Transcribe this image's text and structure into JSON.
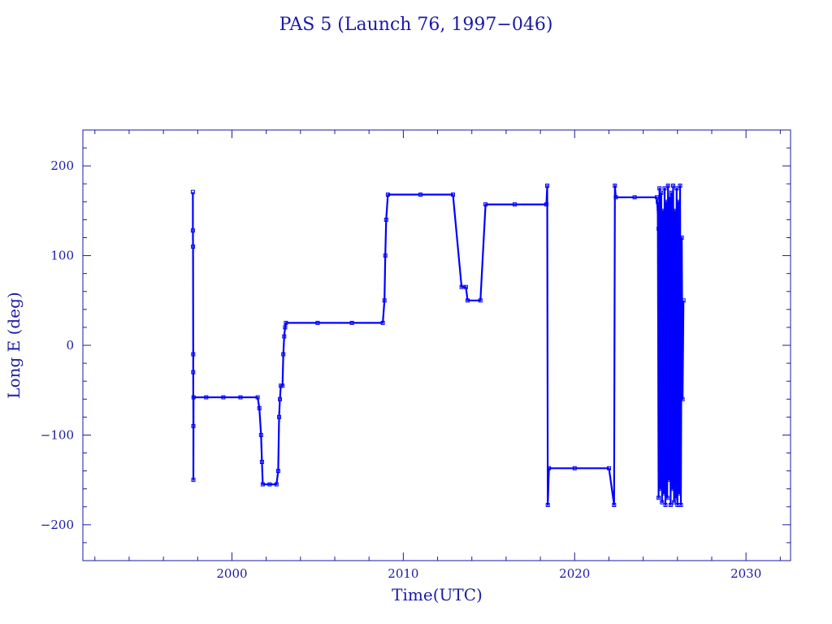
{
  "chart_data": {
    "type": "line",
    "title": "PAS 5 (Launch 76, 1997−046)",
    "xlabel": "Time(UTC)",
    "ylabel": "Long E (deg)",
    "xlim": [
      1991.3,
      2032.6
    ],
    "ylim": [
      -240,
      240
    ],
    "x_ticks": [
      {
        "value": 2000,
        "label": "2000"
      },
      {
        "value": 2010,
        "label": "2010"
      },
      {
        "value": 2020,
        "label": "2020"
      },
      {
        "value": 2030,
        "label": "2030"
      }
    ],
    "y_ticks": [
      {
        "value": 200,
        "label": "200"
      },
      {
        "value": 100,
        "label": "100"
      },
      {
        "value": 0,
        "label": "0"
      },
      {
        "value": -100,
        "label": "−100"
      },
      {
        "value": -200,
        "label": "−200"
      }
    ],
    "grid": false,
    "line_color": "#0000ff",
    "frame_color": "#1a1aa6",
    "series": [
      {
        "points": [
          [
            1997.72,
            171
          ],
          [
            1997.72,
            128
          ],
          [
            1997.73,
            110
          ],
          [
            1997.74,
            -10
          ],
          [
            1997.74,
            -30
          ],
          [
            1997.75,
            -90
          ],
          [
            1997.75,
            -150
          ],
          [
            1997.76,
            -58
          ],
          [
            1998.5,
            -58
          ],
          [
            1999.5,
            -58
          ],
          [
            2000.5,
            -58
          ],
          [
            2001.5,
            -58
          ],
          [
            2001.6,
            -70
          ],
          [
            2001.7,
            -100
          ],
          [
            2001.75,
            -130
          ],
          [
            2001.8,
            -155
          ],
          [
            2002.2,
            -155
          ],
          [
            2002.6,
            -155
          ],
          [
            2002.7,
            -140
          ],
          [
            2002.75,
            -80
          ],
          [
            2002.8,
            -60
          ],
          [
            2002.85,
            -45
          ],
          [
            2002.95,
            -45
          ],
          [
            2003.0,
            -10
          ],
          [
            2003.05,
            10
          ],
          [
            2003.1,
            20
          ],
          [
            2003.15,
            25
          ],
          [
            2005.0,
            25
          ],
          [
            2007.0,
            25
          ],
          [
            2008.8,
            25
          ],
          [
            2008.9,
            50
          ],
          [
            2008.95,
            100
          ],
          [
            2009.0,
            140
          ],
          [
            2009.1,
            168
          ],
          [
            2011.0,
            168
          ],
          [
            2012.9,
            168
          ],
          [
            2013.4,
            65
          ],
          [
            2013.65,
            65
          ],
          [
            2013.75,
            50
          ],
          [
            2014.5,
            50
          ],
          [
            2014.8,
            157
          ],
          [
            2016.5,
            157
          ],
          [
            2018.35,
            157
          ],
          [
            2018.4,
            178
          ],
          [
            2018.43,
            -178
          ],
          [
            2018.5,
            -137
          ],
          [
            2020.0,
            -137
          ],
          [
            2022.0,
            -137
          ],
          [
            2022.3,
            -178
          ],
          [
            2022.35,
            178
          ],
          [
            2022.4,
            165
          ],
          [
            2023.5,
            165
          ],
          [
            2024.8,
            165
          ],
          [
            2024.9,
            130
          ]
        ]
      },
      {
        "name": "",
        "points": [
          [
            2024.85,
            160
          ],
          [
            2024.9,
            -170
          ],
          [
            2024.95,
            175
          ],
          [
            2025.0,
            -160
          ],
          [
            2025.05,
            170
          ],
          [
            2025.1,
            -175
          ],
          [
            2025.15,
            150
          ],
          [
            2025.2,
            -165
          ],
          [
            2025.25,
            175
          ],
          [
            2025.3,
            -178
          ],
          [
            2025.35,
            160
          ],
          [
            2025.4,
            -170
          ],
          [
            2025.45,
            178
          ],
          [
            2025.5,
            -150
          ],
          [
            2025.55,
            165
          ],
          [
            2025.6,
            -178
          ],
          [
            2025.65,
            170
          ],
          [
            2025.7,
            -160
          ],
          [
            2025.75,
            178
          ],
          [
            2025.8,
            -175
          ],
          [
            2025.85,
            150
          ],
          [
            2025.9,
            -170
          ],
          [
            2025.95,
            175
          ],
          [
            2026.0,
            -178
          ],
          [
            2026.05,
            160
          ],
          [
            2026.1,
            -165
          ],
          [
            2026.15,
            178
          ],
          [
            2026.2,
            -178
          ],
          [
            2026.25,
            120
          ],
          [
            2026.3,
            -60
          ],
          [
            2026.35,
            50
          ]
        ]
      }
    ]
  }
}
